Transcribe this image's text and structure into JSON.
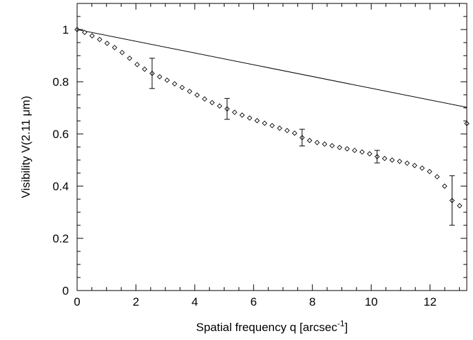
{
  "chart_data": {
    "type": "scatter",
    "xlabel": "Spatial frequency q [arcsec",
    "xlabel_sup": "-1",
    "xlabel_end": "]",
    "ylabel": "Visibility V(2.11 μm)",
    "xlim": [
      0,
      13.25
    ],
    "ylim": [
      0,
      1.1
    ],
    "grid": false,
    "xticks": [
      0,
      2,
      4,
      6,
      8,
      10,
      12
    ],
    "yticks": [
      0,
      0.2,
      0.4,
      0.6,
      0.8,
      1
    ],
    "xtick_labels": [
      "0",
      "2",
      "4",
      "6",
      "8",
      "10",
      "12"
    ],
    "ytick_labels": [
      "0",
      "0.2",
      "0.4",
      "0.6",
      "0.8",
      "1"
    ],
    "series": [
      {
        "kind": "line",
        "x": [
          0,
          13.25
        ],
        "y": [
          1.0,
          0.702
        ]
      },
      {
        "kind": "points",
        "marker": "diamond",
        "x": [
          0.0,
          0.255,
          0.51,
          0.765,
          1.02,
          1.275,
          1.53,
          1.785,
          2.04,
          2.295,
          2.55,
          2.805,
          3.06,
          3.315,
          3.57,
          3.825,
          4.08,
          4.335,
          4.59,
          4.845,
          5.1,
          5.355,
          5.61,
          5.865,
          6.12,
          6.375,
          6.63,
          6.885,
          7.14,
          7.395,
          7.65,
          7.905,
          8.16,
          8.415,
          8.67,
          8.925,
          9.18,
          9.435,
          9.69,
          9.945,
          10.2,
          10.455,
          10.71,
          10.965,
          11.22,
          11.475,
          11.73,
          11.985,
          12.24,
          12.495,
          12.75,
          13.005,
          13.25
        ],
        "y": [
          1.0,
          0.989,
          0.976,
          0.962,
          0.947,
          0.931,
          0.912,
          0.89,
          0.866,
          0.848,
          0.832,
          0.819,
          0.806,
          0.792,
          0.778,
          0.763,
          0.749,
          0.734,
          0.72,
          0.707,
          0.696,
          0.683,
          0.672,
          0.661,
          0.651,
          0.641,
          0.632,
          0.622,
          0.613,
          0.603,
          0.586,
          0.575,
          0.567,
          0.561,
          0.555,
          0.548,
          0.543,
          0.537,
          0.531,
          0.524,
          0.513,
          0.506,
          0.5,
          0.495,
          0.488,
          0.479,
          0.469,
          0.456,
          0.436,
          0.4,
          0.345,
          0.325,
          0.64
        ]
      }
    ],
    "error_bars": {
      "x": [
        2.55,
        5.1,
        7.65,
        10.2,
        12.75
      ],
      "y": [
        0.832,
        0.696,
        0.586,
        0.513,
        0.345
      ],
      "err": [
        0.058,
        0.04,
        0.032,
        0.024,
        0.095
      ]
    }
  }
}
